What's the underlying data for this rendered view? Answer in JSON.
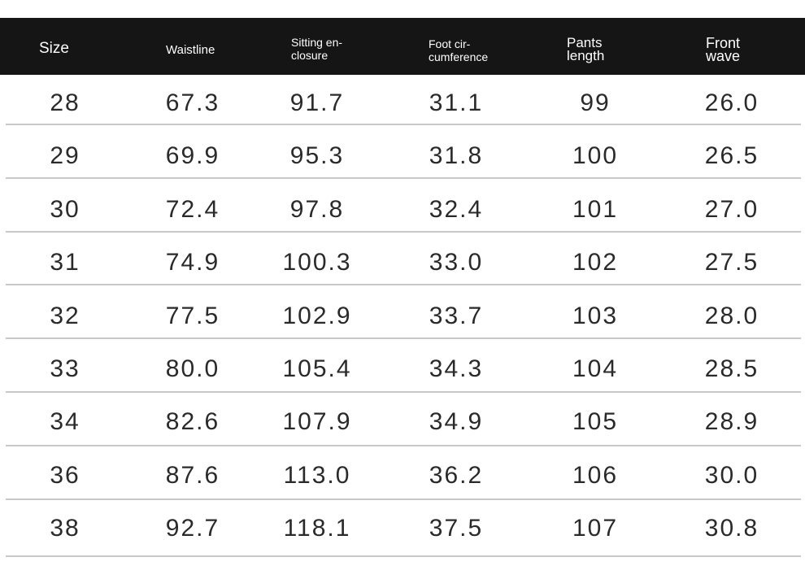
{
  "table": {
    "header": [
      [
        "Size"
      ],
      [
        "Waistline"
      ],
      [
        "Sitting en-",
        "closure"
      ],
      [
        "Foot cir-",
        "cumference"
      ],
      [
        "Pants",
        "length"
      ],
      [
        "Front",
        "wave"
      ]
    ],
    "rows": [
      [
        "28",
        "67.3",
        "91.7",
        "31.1",
        "99",
        "26.0"
      ],
      [
        "29",
        "69.9",
        "95.3",
        "31.8",
        "100",
        "26.5"
      ],
      [
        "30",
        "72.4",
        "97.8",
        "32.4",
        "101",
        "27.0"
      ],
      [
        "31",
        "74.9",
        "100.3",
        "33.0",
        "102",
        "27.5"
      ],
      [
        "32",
        "77.5",
        "102.9",
        "33.7",
        "103",
        "28.0"
      ],
      [
        "33",
        "80.0",
        "105.4",
        "34.3",
        "104",
        "28.5"
      ],
      [
        "34",
        "82.6",
        "107.9",
        "34.9",
        "105",
        "28.9"
      ],
      [
        "36",
        "87.6",
        "113.0",
        "36.2",
        "106",
        "30.0"
      ],
      [
        "38",
        "92.7",
        "118.1",
        "37.5",
        "107",
        "30.8"
      ]
    ]
  }
}
